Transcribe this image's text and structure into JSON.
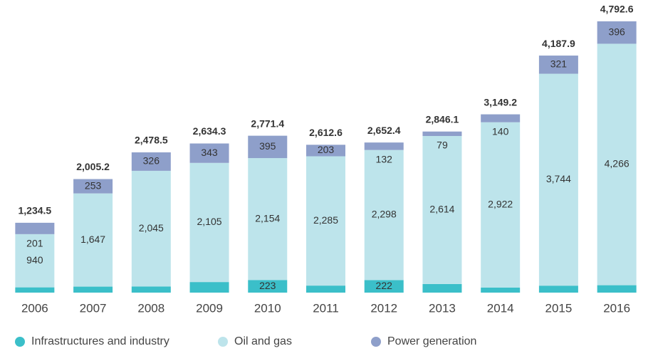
{
  "chart_data": {
    "type": "stacked_bar",
    "categories": [
      "2006",
      "2007",
      "2008",
      "2009",
      "2010",
      "2011",
      "2012",
      "2013",
      "2014",
      "2015",
      "2016"
    ],
    "series": [
      {
        "name": "Infrastructures and industry",
        "color": "#3bbfc9",
        "values": [
          93,
          106,
          107,
          187,
          223,
          124,
          222,
          153,
          88,
          123,
          131
        ]
      },
      {
        "name": "Oil and gas",
        "color": "#bde4eb",
        "values": [
          940,
          1647,
          2045,
          2105,
          2154,
          2285,
          2298,
          2614,
          2922,
          3744,
          4266
        ],
        "value_labels": [
          "940",
          "1,647",
          "2,045",
          "2,105",
          "2,154",
          "2,285",
          "2,298",
          "2,614",
          "2,922",
          "3,744",
          "4,266"
        ]
      },
      {
        "name": "Power generation",
        "color": "#8e9fca",
        "values": [
          201,
          253,
          326,
          343,
          395,
          203,
          132,
          79,
          140,
          321,
          396
        ]
      }
    ],
    "totals": {
      "values": [
        1234.5,
        2005.2,
        2478.5,
        2634.3,
        2771.4,
        2612.6,
        2652.4,
        2846.1,
        3149.2,
        4187.9,
        4792.6
      ],
      "value_labels": [
        "1,234.5",
        "2,005.2",
        "2,478.5",
        "2,634.3",
        "2,771.4",
        "2,612.6",
        "2,652.4",
        "2,846.1",
        "3,149.2",
        "4,187.9",
        "4,792.6"
      ]
    },
    "ylim": [
      0,
      4800
    ],
    "legend": "bottom-left"
  }
}
